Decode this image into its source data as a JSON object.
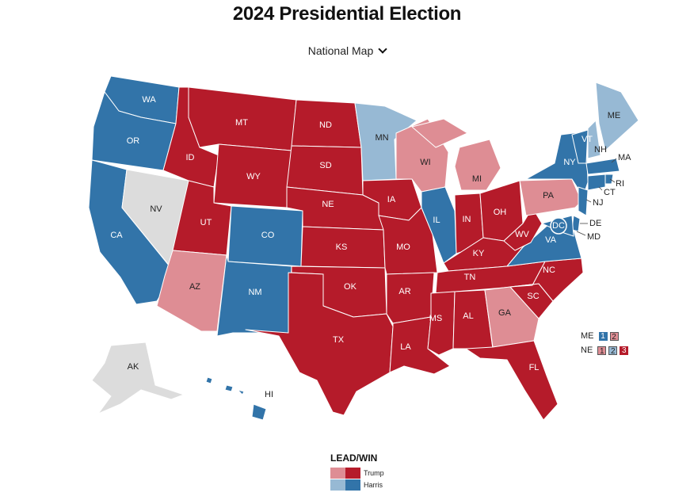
{
  "title": "2024 Presidential Election",
  "view_selector": {
    "label": "National Map",
    "icon": "chevron-down-icon"
  },
  "colors": {
    "trump_win": "#b51b2a",
    "trump_lead": "#de8d94",
    "harris_win": "#3274a9",
    "harris_lead": "#97b9d4",
    "no_result": "#dcdcdc",
    "text_on_dark": "#ffffff",
    "text_on_light": "#222222"
  },
  "states": [
    {
      "abbr": "WA",
      "status": "harris_win"
    },
    {
      "abbr": "OR",
      "status": "harris_win"
    },
    {
      "abbr": "CA",
      "status": "harris_win"
    },
    {
      "abbr": "NV",
      "status": "no_result"
    },
    {
      "abbr": "ID",
      "status": "trump_win"
    },
    {
      "abbr": "MT",
      "status": "trump_win"
    },
    {
      "abbr": "WY",
      "status": "trump_win"
    },
    {
      "abbr": "UT",
      "status": "trump_win"
    },
    {
      "abbr": "AZ",
      "status": "trump_lead"
    },
    {
      "abbr": "CO",
      "status": "harris_win"
    },
    {
      "abbr": "NM",
      "status": "harris_win"
    },
    {
      "abbr": "ND",
      "status": "trump_win"
    },
    {
      "abbr": "SD",
      "status": "trump_win"
    },
    {
      "abbr": "NE",
      "status": "trump_win"
    },
    {
      "abbr": "KS",
      "status": "trump_win"
    },
    {
      "abbr": "OK",
      "status": "trump_win"
    },
    {
      "abbr": "TX",
      "status": "trump_win"
    },
    {
      "abbr": "MN",
      "status": "harris_lead"
    },
    {
      "abbr": "IA",
      "status": "trump_win"
    },
    {
      "abbr": "MO",
      "status": "trump_win"
    },
    {
      "abbr": "AR",
      "status": "trump_win"
    },
    {
      "abbr": "LA",
      "status": "trump_win"
    },
    {
      "abbr": "WI",
      "status": "trump_lead"
    },
    {
      "abbr": "IL",
      "status": "harris_win"
    },
    {
      "abbr": "MI",
      "status": "trump_lead"
    },
    {
      "abbr": "IN",
      "status": "trump_win"
    },
    {
      "abbr": "OH",
      "status": "trump_win"
    },
    {
      "abbr": "KY",
      "status": "trump_win"
    },
    {
      "abbr": "TN",
      "status": "trump_win"
    },
    {
      "abbr": "MS",
      "status": "trump_win"
    },
    {
      "abbr": "AL",
      "status": "trump_win"
    },
    {
      "abbr": "GA",
      "status": "trump_lead"
    },
    {
      "abbr": "FL",
      "status": "trump_win"
    },
    {
      "abbr": "SC",
      "status": "trump_win"
    },
    {
      "abbr": "NC",
      "status": "trump_win"
    },
    {
      "abbr": "VA",
      "status": "harris_win"
    },
    {
      "abbr": "WV",
      "status": "trump_win"
    },
    {
      "abbr": "PA",
      "status": "trump_lead"
    },
    {
      "abbr": "NY",
      "status": "harris_win"
    },
    {
      "abbr": "VT",
      "status": "harris_win"
    },
    {
      "abbr": "NH",
      "status": "harris_lead"
    },
    {
      "abbr": "ME",
      "status": "harris_lead"
    },
    {
      "abbr": "MA",
      "status": "harris_win"
    },
    {
      "abbr": "RI",
      "status": "harris_win"
    },
    {
      "abbr": "CT",
      "status": "harris_win"
    },
    {
      "abbr": "NJ",
      "status": "harris_win"
    },
    {
      "abbr": "DE",
      "status": "harris_win"
    },
    {
      "abbr": "MD",
      "status": "harris_win"
    },
    {
      "abbr": "DC",
      "status": "harris_win"
    },
    {
      "abbr": "AK",
      "status": "no_result"
    },
    {
      "abbr": "HI",
      "status": "harris_win"
    }
  ],
  "districts": [
    {
      "state": "ME",
      "items": [
        {
          "num": "1",
          "status": "harris_win"
        },
        {
          "num": "2",
          "status": "trump_lead"
        }
      ]
    },
    {
      "state": "NE",
      "items": [
        {
          "num": "1",
          "status": "trump_lead"
        },
        {
          "num": "2",
          "status": "harris_lead"
        },
        {
          "num": "3",
          "status": "trump_win"
        }
      ]
    }
  ],
  "legend": {
    "title": "LEAD/WIN",
    "entries": [
      {
        "name": "Trump",
        "lead_status": "trump_lead",
        "win_status": "trump_win"
      },
      {
        "name": "Harris",
        "lead_status": "harris_lead",
        "win_status": "harris_win"
      }
    ]
  }
}
